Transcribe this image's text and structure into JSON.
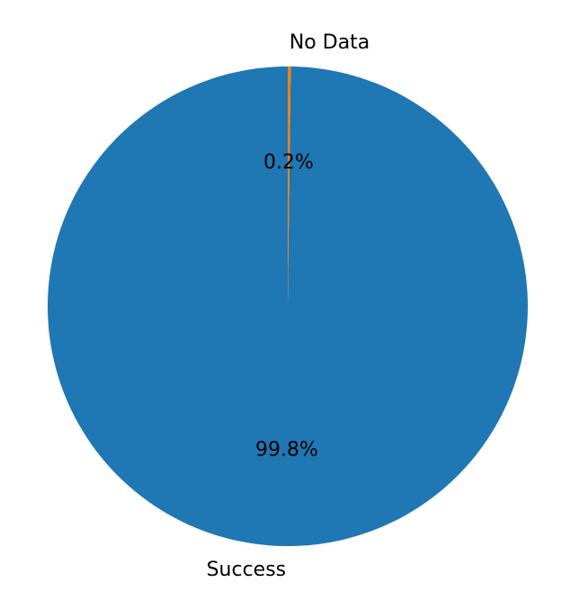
{
  "chart_data": {
    "type": "pie",
    "categories": [
      "Success",
      "No Data"
    ],
    "values": [
      99.8,
      0.2
    ],
    "percent_labels": [
      "99.8%",
      "0.2%"
    ],
    "colors": [
      "#1f77b4",
      "#ff7f0e"
    ],
    "start_angle_deg": 90,
    "direction": "counterclockwise",
    "title": "",
    "legend": "none"
  }
}
